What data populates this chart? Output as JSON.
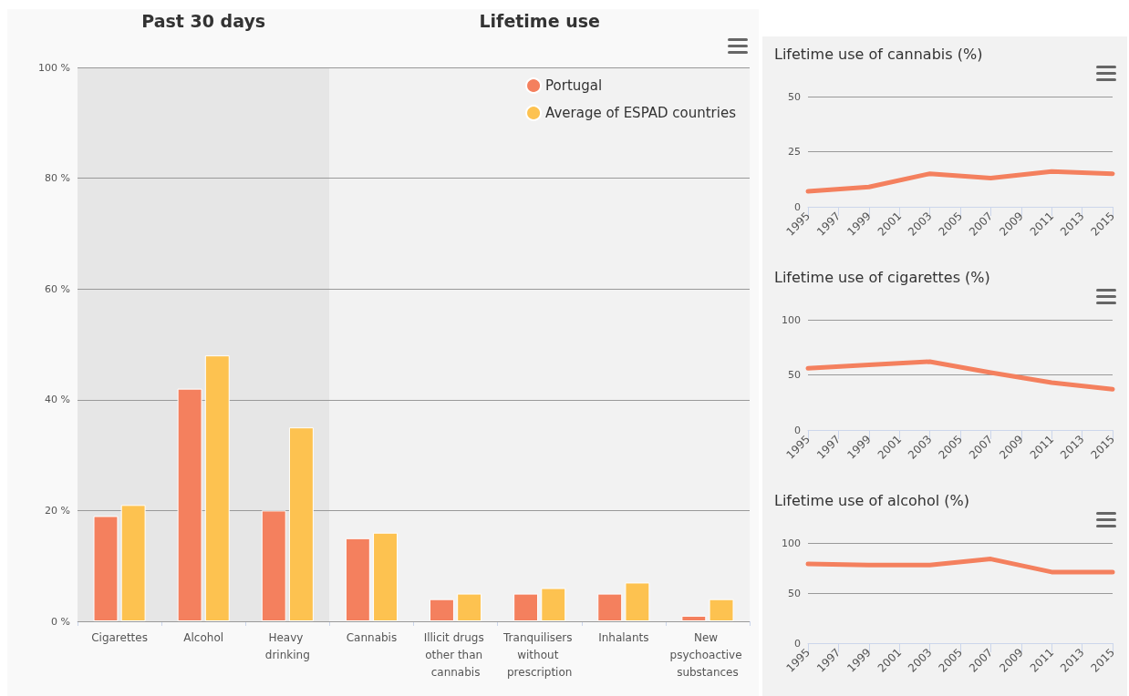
{
  "chart_data": [
    {
      "type": "bar",
      "categories": [
        "Cigarettes",
        "Alcohol",
        "Heavy drinking",
        "Cannabis",
        "Illicit drugs other than cannabis",
        "Tranquilisers without prescription",
        "Inhalants",
        "New psychoactive substances"
      ],
      "series": [
        {
          "name": "Portugal",
          "color": "#f4805e",
          "values": [
            19,
            42,
            20,
            15,
            4,
            5,
            5,
            1
          ]
        },
        {
          "name": "Average of ESPAD countries",
          "color": "#fdc250",
          "values": [
            21,
            48,
            35,
            16,
            5,
            6,
            7,
            4
          ]
        }
      ],
      "ylim": [
        0,
        100
      ],
      "yticks": [
        {
          "value": 0,
          "label": "0 %"
        },
        {
          "value": 20,
          "label": "20 %"
        },
        {
          "value": 40,
          "label": "40 %"
        },
        {
          "value": 60,
          "label": "60 %"
        },
        {
          "value": 80,
          "label": "80 %"
        },
        {
          "value": 100,
          "label": "100 %"
        }
      ],
      "bands": [
        {
          "axis": "x",
          "from": "Cigarettes",
          "to": "Heavy drinking",
          "label": "Past 30 days",
          "color": "#e6e6e6"
        },
        {
          "axis": "x",
          "from": "Cannabis",
          "to": "New psychoactive substances",
          "label": "Lifetime use",
          "color": "#f2f2f2"
        }
      ],
      "grid": "y",
      "legend": "top right"
    },
    {
      "type": "line",
      "title": "Lifetime use of cannabis (%)",
      "x": [
        1995,
        1999,
        2003,
        2007,
        2011,
        2015
      ],
      "series": [
        {
          "color": "#f4805e",
          "values": [
            7,
            9,
            15,
            13,
            16,
            15
          ]
        }
      ],
      "xlim": [
        1995,
        2015
      ],
      "xticks": [
        1995,
        1997,
        1999,
        2001,
        2003,
        2005,
        2007,
        2009,
        2011,
        2013,
        2015
      ],
      "ylim": [
        0,
        50
      ],
      "yticks": [
        0,
        25,
        50
      ],
      "grid": "y",
      "marker": "none"
    },
    {
      "type": "line",
      "title": "Lifetime use of cigarettes (%)",
      "x": [
        1995,
        1999,
        2003,
        2007,
        2011,
        2015
      ],
      "series": [
        {
          "color": "#f4805e",
          "values": [
            56,
            59,
            62,
            52,
            43,
            37
          ]
        }
      ],
      "xlim": [
        1995,
        2015
      ],
      "xticks": [
        1995,
        1997,
        1999,
        2001,
        2003,
        2005,
        2007,
        2009,
        2011,
        2013,
        2015
      ],
      "ylim": [
        0,
        100
      ],
      "yticks": [
        0,
        50,
        100
      ],
      "grid": "y",
      "marker": "none"
    },
    {
      "type": "line",
      "title": "Lifetime use of alcohol (%)",
      "x": [
        1995,
        1999,
        2003,
        2007,
        2011,
        2015
      ],
      "series": [
        {
          "color": "#f4805e",
          "values": [
            79,
            78,
            78,
            84,
            71,
            71
          ]
        }
      ],
      "xlim": [
        1995,
        2015
      ],
      "xticks": [
        1995,
        1997,
        1999,
        2001,
        2003,
        2005,
        2007,
        2009,
        2011,
        2013,
        2015
      ],
      "ylim": [
        0,
        100
      ],
      "yticks": [
        0,
        50,
        100
      ],
      "grid": "y",
      "marker": "none"
    }
  ]
}
